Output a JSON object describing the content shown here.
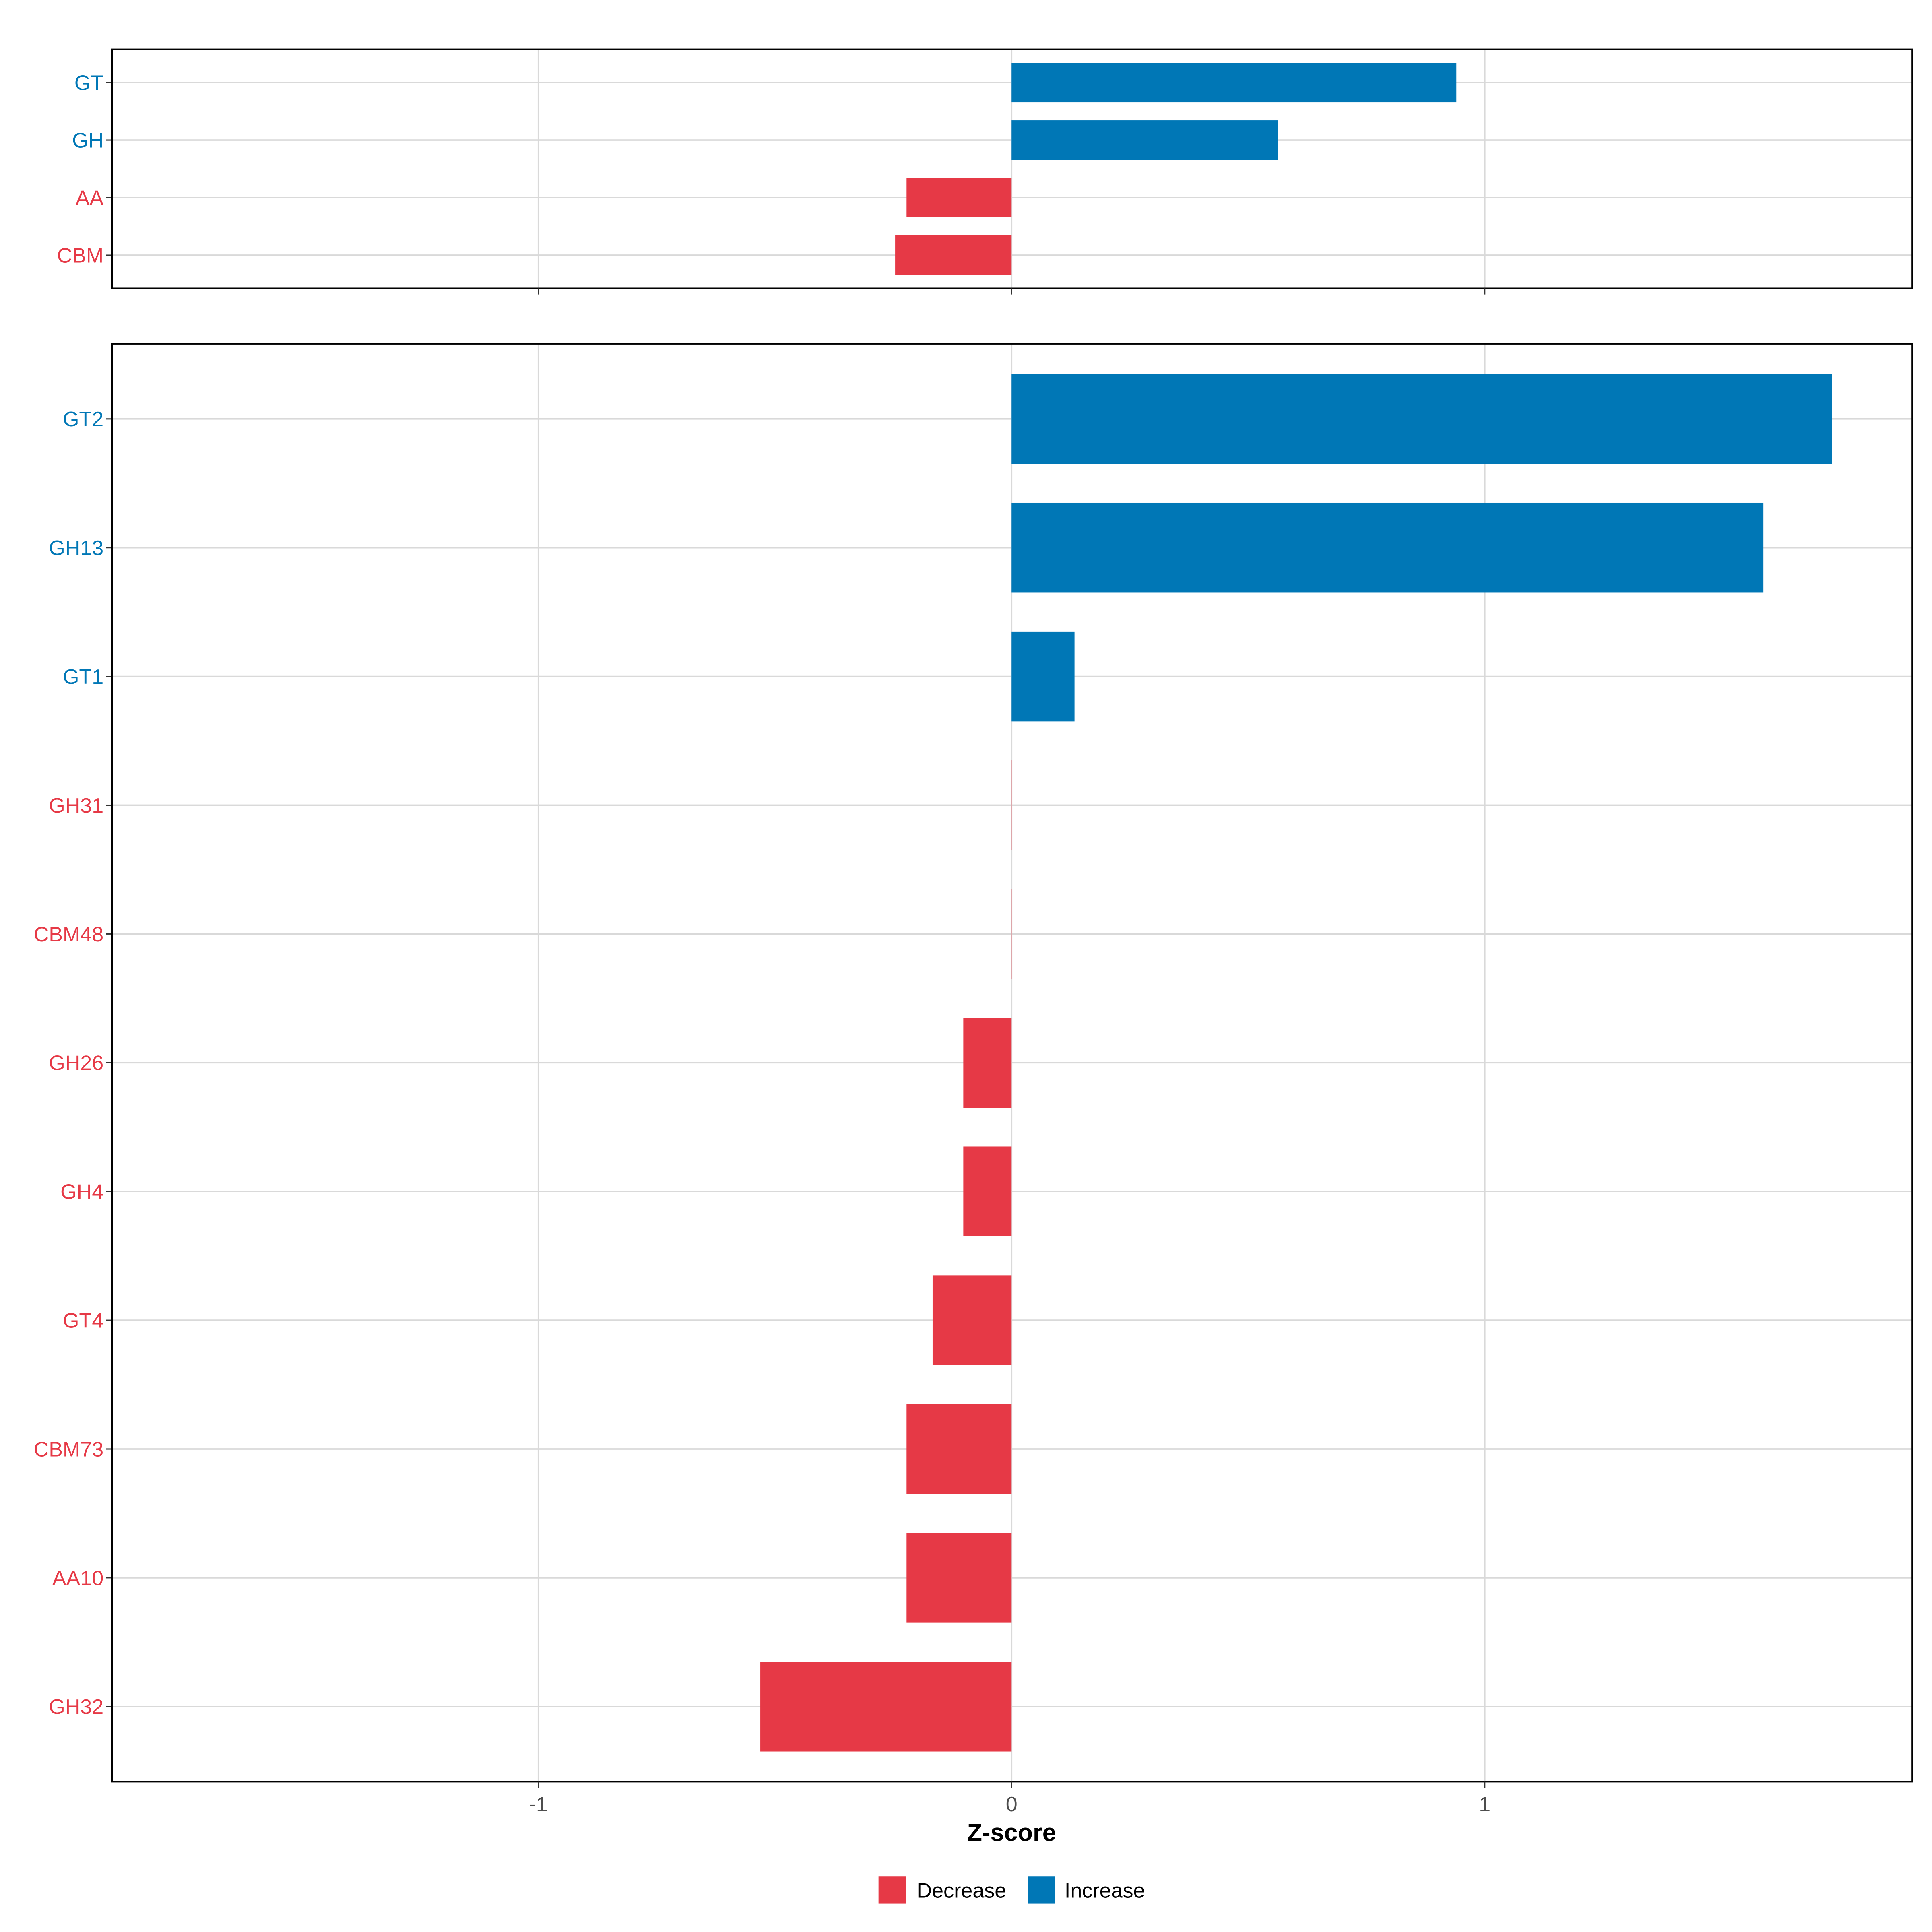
{
  "chart_data": [
    {
      "type": "bar",
      "orientation": "horizontal",
      "panel": "top",
      "categories": [
        "GT",
        "GH",
        "AA",
        "CBM"
      ],
      "values": [
        0.94,
        0.563,
        -0.222,
        -0.246
      ],
      "xlim": [
        -1.9,
        1.9
      ],
      "grid": true
    },
    {
      "type": "bar",
      "orientation": "horizontal",
      "panel": "bottom",
      "categories": [
        "GT2",
        "GH13",
        "GT1",
        "GH31",
        "CBM48",
        "GH26",
        "GH4",
        "GT4",
        "CBM73",
        "AA10",
        "GH32"
      ],
      "values": [
        1.734,
        1.589,
        0.133,
        -0.001,
        -0.001,
        -0.102,
        -0.102,
        -0.167,
        -0.222,
        -0.222,
        -0.531
      ],
      "xlim": [
        -1.9,
        1.9
      ],
      "xticks": [
        "-1",
        "0",
        "1"
      ],
      "xlabel": "Z-score",
      "grid": true
    }
  ],
  "legend": {
    "placement": "bottom",
    "items": [
      {
        "label": "Decrease",
        "color": "#E63946"
      },
      {
        "label": "Increase",
        "color": "#0077B6"
      }
    ]
  },
  "colors": {
    "increase": "#0077B6",
    "decrease": "#E63946",
    "grid": "#D9D9D9"
  }
}
